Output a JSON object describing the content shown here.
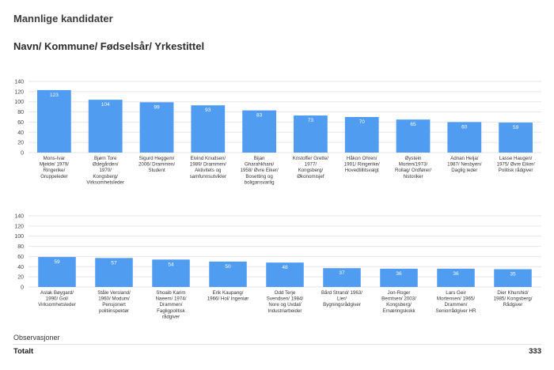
{
  "header": {
    "title": "Mannlige kandidater",
    "subtitle": "Navn/ Kommune/ Fødselsår/ Yrkestittel"
  },
  "footer": {
    "observations_label": "Observasjoner",
    "total_label": "Totalt",
    "total_value": "333"
  },
  "colors": {
    "bar": "#4f9cf0",
    "grid": "#e6e6e6"
  },
  "chart_data": [
    {
      "type": "bar",
      "title": "",
      "xlabel": "",
      "ylabel": "",
      "ylim": [
        0,
        140
      ],
      "yticks": [
        0,
        20,
        40,
        60,
        80,
        100,
        120,
        140
      ],
      "grid": true,
      "categories": [
        [
          "Mons-Ivar",
          "Mjelde/ 1979/",
          "Ringerike/",
          "Gruppeleder"
        ],
        [
          "Bjørn Tore",
          "Ødegården/",
          "1970/",
          "Kongsberg/",
          "Virksomhetsleder"
        ],
        [
          "Sigurd Heggem/",
          "2006/ Drammen/",
          "Student"
        ],
        [
          "Eivind Knudsen/",
          "1989/ Drammen/",
          "Aktivitets og",
          "samfunnsutvikler"
        ],
        [
          "Bijan",
          "Gharahkhani/",
          "1958/ Øvre Eiker/",
          "Bosetting og",
          "boligansvarlig"
        ],
        [
          "Kristoffer Grette/",
          "1977/",
          "Kongsberg/",
          "Økonomisjef"
        ],
        [
          "Håkon Ohren/",
          "1991/ Ringerike/",
          "Hovedtillitsvalgt"
        ],
        [
          "Øystein",
          "Morten/1973/",
          "Rollag/ Ordfører/",
          "historiker"
        ],
        [
          "Adnan Helja/",
          "1987/ Nesbyen/",
          "Daglig leder"
        ],
        [
          "Lasse Haugen/",
          "1975/ Øvre Eiker/",
          "Politisk rådgiver"
        ]
      ],
      "values": [
        123,
        104,
        99,
        93,
        83,
        73,
        70,
        65,
        60,
        59
      ]
    },
    {
      "type": "bar",
      "title": "",
      "xlabel": "",
      "ylabel": "",
      "ylim": [
        0,
        140
      ],
      "yticks": [
        0,
        20,
        40,
        60,
        80,
        100,
        120,
        140
      ],
      "grid": true,
      "categories": [
        [
          "Aslak Bøygard/",
          "1990/ Gol/",
          "Virksomhetsleder"
        ],
        [
          "Ståle Versland/",
          "1960/ Modum/",
          "Pensjonert",
          "politiinspektør"
        ],
        [
          "Shoaib Karim",
          "Naeem/ 1974/",
          "Drammen/",
          "Fagligpolitisk",
          "rådgiver"
        ],
        [
          "Erik Kaupang/",
          "1966/ Hol/ Ingeniør"
        ],
        [
          "Odd Terje",
          "Svendsen/ 1984/",
          "Nore og Uvdal/",
          "Industriarbeider"
        ],
        [
          "Bård Strand/ 1963/",
          "Lier/",
          "Bygningsrådgiver"
        ],
        [
          "Jon-Roger",
          "Berntsen/ 2003/",
          "Kongsberg/",
          "Ernæringskokk"
        ],
        [
          "Lars Geir",
          "Mortensen/ 1965/",
          "Drammen/",
          "Seniorrådgiver HR"
        ],
        [
          "Dier Khurshid/",
          "1985/ Kongsberg/",
          "Rådgiver"
        ]
      ],
      "values": [
        59,
        57,
        54,
        50,
        48,
        37,
        36,
        36,
        35
      ]
    }
  ]
}
